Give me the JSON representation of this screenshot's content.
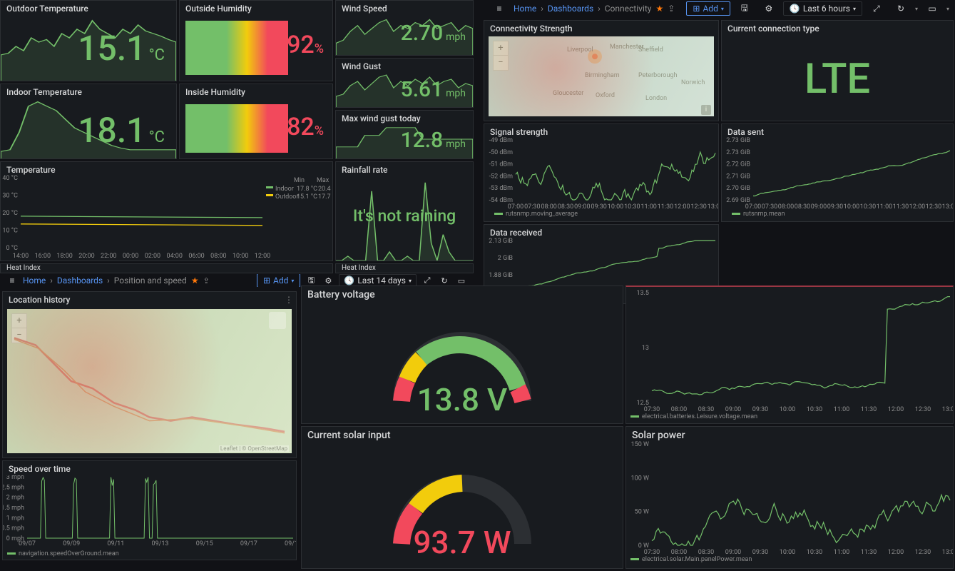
{
  "colors": {
    "bg": "#111216",
    "panel": "#181b1f",
    "green": "#73bf69",
    "red": "#f2495c",
    "yellow": "#f2cc0c",
    "orange": "#ff780a",
    "blue": "#5794f2",
    "text_dim": "#8e8e8e",
    "text": "#d8d9da"
  },
  "env": {
    "outdoor_temp": {
      "title": "Outdoor Temperature",
      "value": "15.1",
      "unit": "°C",
      "spark": [
        30,
        32,
        40,
        35,
        50,
        45,
        48,
        40,
        55,
        50,
        60,
        55,
        70,
        60,
        55,
        50,
        60,
        55,
        65,
        58,
        55,
        52,
        48,
        45
      ]
    },
    "outside_humidity": {
      "title": "Outside Humidity",
      "value": "92",
      "unit": "%",
      "pct": 92
    },
    "indoor_temp": {
      "title": "Indoor Temperature",
      "value": "18.1",
      "unit": "°C",
      "spark": [
        8,
        10,
        30,
        60,
        65,
        60,
        55,
        45,
        35,
        30,
        25,
        20,
        15,
        12,
        10,
        10,
        10,
        10,
        10,
        10
      ]
    },
    "inside_humidity": {
      "title": "Inside Humidity",
      "value": "82",
      "unit": "%",
      "pct": 82
    },
    "wind_speed": {
      "title": "Wind Speed",
      "value": "2.70",
      "unit": "mph",
      "spark": [
        20,
        25,
        40,
        50,
        35,
        45,
        55,
        60,
        40,
        50,
        45,
        55,
        50,
        60,
        45,
        50,
        55,
        40,
        50,
        45
      ]
    },
    "wind_gust": {
      "title": "Wind Gust",
      "value": "5.61",
      "unit": "mph",
      "spark": [
        25,
        30,
        50,
        60,
        40,
        55,
        70,
        75,
        45,
        60,
        50,
        65,
        55,
        70,
        50,
        60,
        65,
        45,
        55,
        50
      ]
    },
    "max_wind": {
      "title": "Max wind gust today",
      "value": "12.8",
      "unit": "mph",
      "spark": [
        30,
        30,
        30,
        30,
        60,
        60,
        60,
        80,
        80,
        80,
        80,
        80,
        50,
        50,
        50,
        50,
        50,
        50,
        50,
        50
      ]
    },
    "rainfall": {
      "title": "Rainfall rate",
      "message": "It's not raining",
      "spark": [
        0,
        0,
        5,
        0,
        0,
        0,
        80,
        0,
        0,
        10,
        0,
        0,
        5,
        0,
        0,
        90,
        20,
        0,
        30,
        10,
        0,
        0,
        0,
        0
      ]
    },
    "heat_left": {
      "title": "Heat Index"
    },
    "heat_right": {
      "title": "Heat Index"
    }
  },
  "temp_chart": {
    "title": "Temperature",
    "yTicks": [
      "0 °C",
      "10 °C",
      "20 °C",
      "30 °C",
      "40 °C"
    ],
    "xTicks": [
      "14:00",
      "16:00",
      "18:00",
      "20:00",
      "22:00",
      "00:00",
      "02:00",
      "04:00",
      "06:00",
      "08:00",
      "10:00",
      "12:00"
    ],
    "header": {
      "min": "Min",
      "max": "Max"
    },
    "series": [
      {
        "name": "Indoor",
        "color": "#73bf69",
        "min": "17.8 °C",
        "max": "20.4 °C",
        "y": 18
      },
      {
        "name": "Outdoor",
        "color": "#f2cc0c",
        "min": "15.1 °C",
        "max": "17.7 °C",
        "y": 16
      }
    ]
  },
  "pos_dash": {
    "crumbs": [
      "Home",
      "Dashboards",
      "Position and speed"
    ],
    "add": "Add",
    "time": "Last 14 days",
    "location": {
      "title": "Location history",
      "attribution": "Leaflet | © OpenStreetMap"
    },
    "speed": {
      "title": "Speed over time",
      "yTicks": [
        "0 mph",
        "0.5 mph",
        "1 mph",
        "1.5 mph",
        "2 mph",
        "2.5 mph",
        "3 mph"
      ],
      "xTicks": [
        "09/07",
        "09/09",
        "09/11",
        "09/13",
        "09/15",
        "09/17",
        "09/19"
      ],
      "legend": "navigation.speedOverGround.mean"
    }
  },
  "conn_dash": {
    "crumbs": [
      "Home",
      "Dashboards",
      "Connectivity"
    ],
    "add": "Add",
    "time": "Last 6 hours",
    "strength": {
      "title": "Connectivity Strength",
      "info": "i"
    },
    "conn_type": {
      "title": "Current connection type",
      "value": "LTE"
    },
    "signal": {
      "title": "Signal strength",
      "yTicks": [
        "-54 dBm",
        "-53 dBm",
        "-52 dBm",
        "-51 dBm",
        "-50 dBm",
        "-49 dBm"
      ],
      "xTicks": [
        "07:00",
        "07:30",
        "08:00",
        "08:30",
        "09:00",
        "09:30",
        "10:00",
        "10:30",
        "11:00",
        "11:30",
        "12:00",
        "12:30",
        "13:00"
      ],
      "legend": "rutsnmp.moving_average"
    },
    "data_sent": {
      "title": "Data sent",
      "yTicks": [
        "2.69 GiB",
        "2.70 GiB",
        "2.71 GiB",
        "2.72 GiB",
        "2.73 GiB",
        "2.73 GiB"
      ],
      "legend": "rutsnmp.mean"
    },
    "data_recv": {
      "title": "Data received",
      "yTicks": [
        "1.75 GiB",
        "1.88 GiB",
        "2 GiB",
        "2.13 GiB"
      ]
    }
  },
  "power": {
    "battery_voltage": {
      "title": "Battery voltage",
      "value": "13.8 V",
      "pct": 0.75,
      "value_color": "#73bf69"
    },
    "solar_input": {
      "title": "Current solar input",
      "value": "93.7 W",
      "pct": 0.4,
      "value_color": "#f2495c"
    },
    "volt_chart": {
      "yTicks": [
        "12.5",
        "13",
        "13.5"
      ],
      "xTicks": [
        "07:30",
        "08:00",
        "08:30",
        "09:00",
        "09:30",
        "10:00",
        "10:30",
        "11:00",
        "11:30",
        "12:00",
        "12:30",
        "13:00"
      ],
      "legend": "electrical.batteries.Leisure.voltage.mean"
    },
    "solar_chart": {
      "title": "Solar power",
      "yTicks": [
        "0 W",
        "50 W",
        "100 W",
        "150 W"
      ],
      "xTicks": [
        "07:30",
        "08:00",
        "08:30",
        "09:00",
        "09:30",
        "10:00",
        "10:30",
        "11:00",
        "11:30",
        "12:00",
        "12:30",
        "13:00"
      ],
      "legend": "electrical.solar.Main.panelPower.mean"
    }
  }
}
